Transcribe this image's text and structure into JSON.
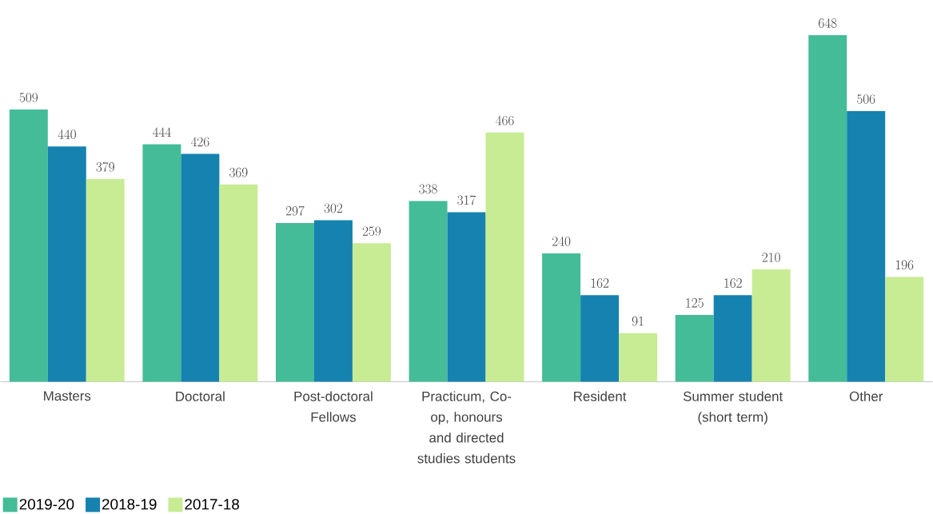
{
  "chart_data": {
    "type": "bar",
    "categories": [
      "Masters",
      "Doctoral",
      "Post-doctoral Fellows",
      "Practicum, Co-op, honours and directed studies students",
      "Resident",
      "Summer student (short term)",
      "Other"
    ],
    "series": [
      {
        "name": "2019-20",
        "color": "#43bc97",
        "values": [
          509,
          444,
          297,
          338,
          240,
          125,
          648
        ]
      },
      {
        "name": "2018-19",
        "color": "#1582b0",
        "values": [
          440,
          426,
          302,
          317,
          162,
          162,
          506
        ]
      },
      {
        "name": "2017-18",
        "color": "#c7ec94",
        "values": [
          379,
          369,
          259,
          466,
          91,
          210,
          196
        ]
      }
    ],
    "data_labels": true,
    "legend": "bottom",
    "grid": false
  }
}
